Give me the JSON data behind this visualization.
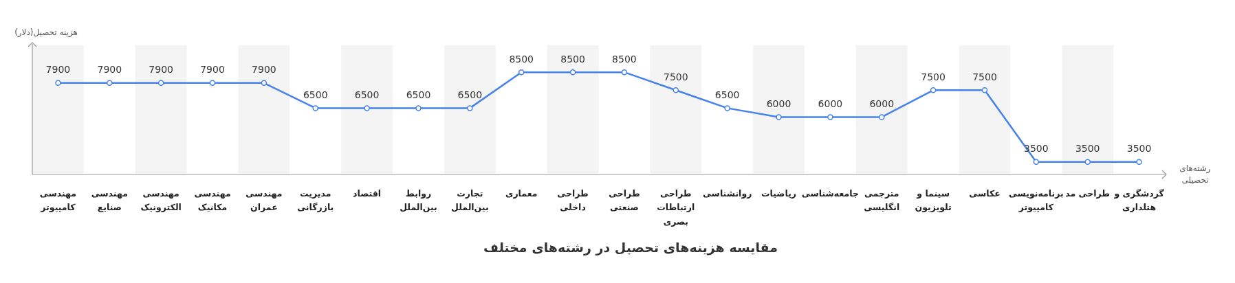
{
  "chart_data": {
    "type": "line",
    "title": "مقایسه هزینه‌های تحصیل در رشته‌های مختلف",
    "xlabel": "رشته‌های تحصیلی",
    "ylabel": "هزینه تحصیل(دلار)",
    "categories": [
      "مهندسی کامپیوتر",
      "مهندسی صنایع",
      "مهندسی الکترونیک",
      "مهندسی مکانیک",
      "مهندسی عمران",
      "مدیریت بازرگانی",
      "اقتصاد",
      "روابط بین‌الملل",
      "تجارت بین‌الملل",
      "معماری",
      "طراحی داخلی",
      "طراحی صنعتی",
      "طراحی ارتباطات بصری",
      "روانشناسی",
      "ریاضیات",
      "جامعه‌شناسی",
      "مترجمی انگلیسی",
      "سینما و تلویزیون",
      "عکاسی",
      "برنامه‌نویسی کامپیوتر",
      "طراحی مد",
      "گردشگری و هتلداری"
    ],
    "values": [
      7900,
      7900,
      7900,
      7900,
      7900,
      6500,
      6500,
      6500,
      6500,
      8500,
      8500,
      8500,
      7500,
      6500,
      6000,
      6000,
      6000,
      7500,
      7500,
      3500,
      3500,
      3500
    ],
    "color": "#4582ec",
    "ylim": [
      2800,
      10000
    ],
    "tick_labels": "x",
    "data_labels": true,
    "marker": "circle",
    "line_style": "solid",
    "legend": false,
    "bands": [
      {
        "axis": "x",
        "from": "مهندسی کامپیوتر",
        "to": "مهندسی کامپیوتر",
        "color": "#f4f4f4"
      },
      {
        "axis": "x",
        "from": "مهندسی الکترونیک",
        "to": "مهندسی الکترونیک",
        "color": "#f4f4f4"
      },
      {
        "axis": "x",
        "from": "مهندسی عمران",
        "to": "مهندسی عمران",
        "color": "#f4f4f4"
      },
      {
        "axis": "x",
        "from": "اقتصاد",
        "to": "اقتصاد",
        "color": "#f4f4f4"
      },
      {
        "axis": "x",
        "from": "تجارت بین‌الملل",
        "to": "تجارت بین‌الملل",
        "color": "#f4f4f4"
      },
      {
        "axis": "x",
        "from": "طراحی داخلی",
        "to": "طراحی داخلی",
        "color": "#f4f4f4"
      },
      {
        "axis": "x",
        "from": "طراحی ارتباطات بصری",
        "to": "طراحی ارتباطات بصری",
        "color": "#f4f4f4"
      },
      {
        "axis": "x",
        "from": "ریاضیات",
        "to": "ریاضیات",
        "color": "#f4f4f4"
      },
      {
        "axis": "x",
        "from": "مترجمی انگلیسی",
        "to": "مترجمی انگلیسی",
        "color": "#f4f4f4"
      },
      {
        "axis": "x",
        "from": "عکاسی",
        "to": "عکاسی",
        "color": "#f4f4f4"
      },
      {
        "axis": "x",
        "from": "طراحی مد",
        "to": "طراحی مد",
        "color": "#f4f4f4"
      }
    ]
  }
}
